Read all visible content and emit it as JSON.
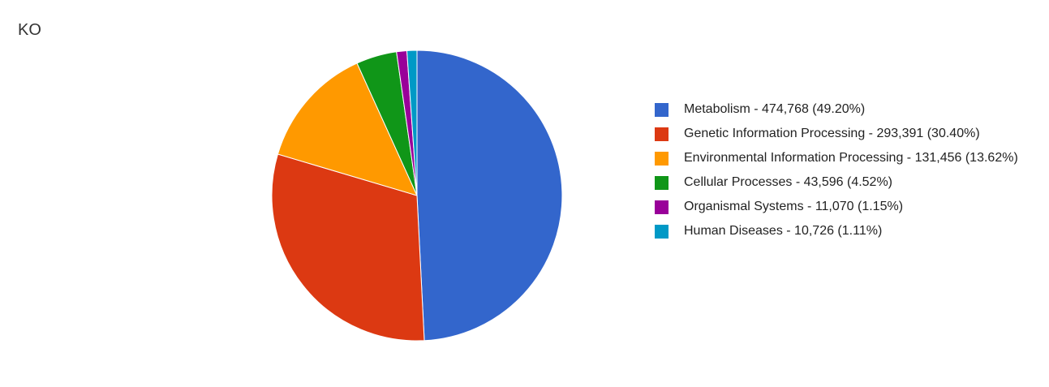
{
  "chart_data": {
    "type": "pie",
    "title": "KO",
    "legend_position": "right",
    "slices": [
      {
        "label": "Metabolism",
        "value": 474768,
        "value_text": "474,768",
        "percent_text": "(49.20%)",
        "color": "#3366cc"
      },
      {
        "label": "Genetic Information Processing",
        "value": 293391,
        "value_text": "293,391",
        "percent_text": "(30.40%)",
        "color": "#dc3912"
      },
      {
        "label": "Environmental Information Processing",
        "value": 131456,
        "value_text": "131,456",
        "percent_text": "(13.62%)",
        "color": "#ff9900"
      },
      {
        "label": "Cellular Processes",
        "value": 43596,
        "value_text": "43,596",
        "percent_text": "(4.52%)",
        "color": "#109618"
      },
      {
        "label": "Organismal Systems",
        "value": 11070,
        "value_text": "11,070",
        "percent_text": "(1.15%)",
        "color": "#990099"
      },
      {
        "label": "Human Diseases",
        "value": 10726,
        "value_text": "10,726",
        "percent_text": "(1.11%)",
        "color": "#0099c6"
      }
    ]
  }
}
